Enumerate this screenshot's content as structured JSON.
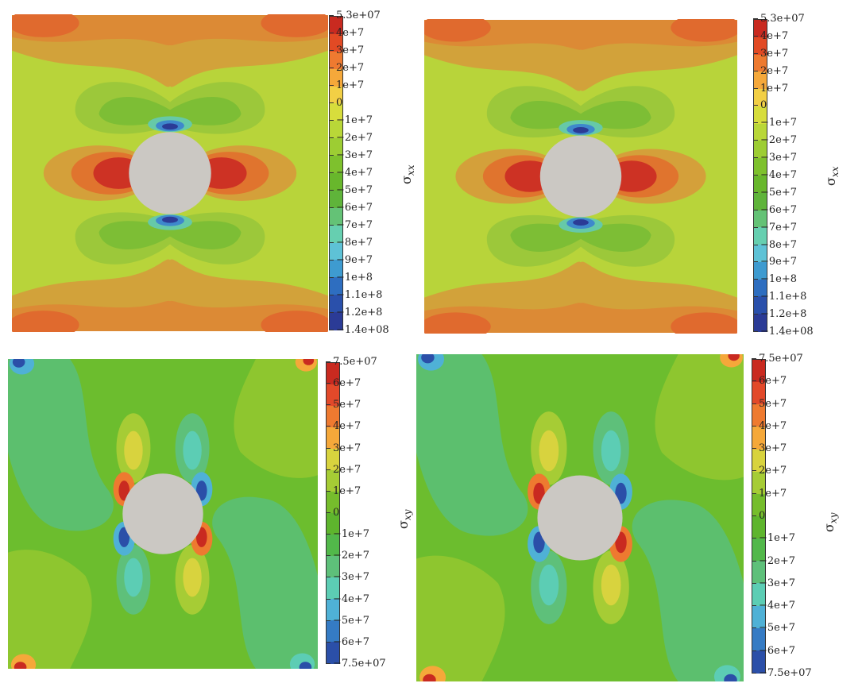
{
  "chart_data": [
    {
      "type": "heatmap",
      "field": "σ",
      "subscript": "xx",
      "range": [
        -140000000,
        53000000
      ],
      "ticks": [
        "5.3e+07",
        "4e+7",
        "3e+7",
        "2e+7",
        "1e+7",
        "0",
        "−1e+7",
        "−2e+7",
        "−3e+7",
        "−4e+7",
        "−5e+7",
        "−6e+7",
        "−7e+7",
        "−8e+7",
        "−9e+7",
        "−1e+8",
        "−1.1e+8",
        "−1.2e+8",
        "−1.4e+08"
      ],
      "colors": [
        "#c92a20",
        "#e24a24",
        "#ee7a30",
        "#f5a83a",
        "#f2cf45",
        "#d7dd3c",
        "#b9d738",
        "#9dcd33",
        "#7ec12d",
        "#68b72c",
        "#5fb43a",
        "#64c276",
        "#66cfb0",
        "#5ec2d6",
        "#3e9bd0",
        "#2e6ec0",
        "#2a50ab",
        "#2b3b96"
      ]
    },
    {
      "type": "heatmap",
      "field": "σ",
      "subscript": "xx",
      "range": [
        -140000000,
        53000000
      ],
      "ticks": [
        "5.3e+07",
        "4e+7",
        "3e+7",
        "2e+7",
        "1e+7",
        "0",
        "−1e+7",
        "−2e+7",
        "−3e+7",
        "−4e+7",
        "−5e+7",
        "−6e+7",
        "−7e+7",
        "−8e+7",
        "−9e+7",
        "−1e+8",
        "−1.1e+8",
        "−1.2e+8",
        "−1.4e+08"
      ],
      "colors": [
        "#c92a20",
        "#e24a24",
        "#ee7a30",
        "#f5a83a",
        "#f2cf45",
        "#d7dd3c",
        "#b9d738",
        "#9dcd33",
        "#7ec12d",
        "#68b72c",
        "#5fb43a",
        "#64c276",
        "#66cfb0",
        "#5ec2d6",
        "#3e9bd0",
        "#2e6ec0",
        "#2a50ab",
        "#2b3b96"
      ]
    },
    {
      "type": "heatmap",
      "field": "σ",
      "subscript": "xy",
      "range": [
        -75000000,
        75000000
      ],
      "ticks": [
        "7.5e+07",
        "6e+7",
        "5e+7",
        "4e+7",
        "3e+7",
        "2e+7",
        "1e+7",
        "0",
        "−1e+7",
        "−2e+7",
        "−3e+7",
        "−4e+7",
        "−5e+7",
        "−6e+7",
        "−7.5e+07"
      ],
      "colors": [
        "#c92a20",
        "#e2492a",
        "#ee7a30",
        "#f5a83a",
        "#d8d33e",
        "#a6cc35",
        "#76bd2c",
        "#5eb52d",
        "#52b84a",
        "#5ec07a",
        "#5ccdb4",
        "#4fb1d6",
        "#357bc4",
        "#2b4fa8"
      ]
    },
    {
      "type": "heatmap",
      "field": "σ",
      "subscript": "xy",
      "range": [
        -75000000,
        75000000
      ],
      "ticks": [
        "7.5e+07",
        "6e+7",
        "5e+7",
        "4e+7",
        "3e+7",
        "2e+7",
        "1e+7",
        "0",
        "−1e+7",
        "−2e+7",
        "−3e+7",
        "−4e+7",
        "−5e+7",
        "−6e+7",
        "−7.5e+07"
      ],
      "colors": [
        "#c92a20",
        "#e2492a",
        "#ee7a30",
        "#f5a83a",
        "#d8d33e",
        "#a6cc35",
        "#76bd2c",
        "#5eb52d",
        "#52b84a",
        "#5ec07a",
        "#5ccdb4",
        "#4fb1d6",
        "#357bc4",
        "#2b4fa8"
      ]
    }
  ]
}
